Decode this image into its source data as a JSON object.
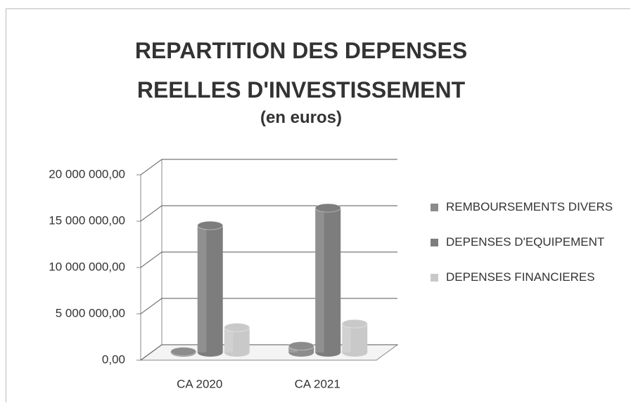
{
  "chart_data": {
    "type": "bar3d",
    "title": "REPARTITION DES DEPENSES REELLES D'INVESTISSEMENT",
    "subtitle": "(en euros)",
    "categories": [
      "CA 2020",
      "CA 2021"
    ],
    "series": [
      {
        "name": "REMBOURSEMENTS DIVERS",
        "color": "#8c8c8c",
        "values": [
          100000,
          700000
        ]
      },
      {
        "name": "DEPENSES D'EQUIPEMENT",
        "color": "#7d7d7d",
        "values": [
          13700000,
          15600000
        ]
      },
      {
        "name": "DEPENSES FINANCIERES",
        "color": "#c9c9c9",
        "values": [
          2700000,
          3100000
        ]
      }
    ],
    "ylim": [
      0,
      20000000
    ],
    "yticks": [
      {
        "value": 0,
        "label": "0,00"
      },
      {
        "value": 5000000,
        "label": "5 000 000,00"
      },
      {
        "value": 10000000,
        "label": "10 000 000,00"
      },
      {
        "value": 15000000,
        "label": "15 000 000,00"
      },
      {
        "value": 20000000,
        "label": "20 000 000,00"
      }
    ],
    "grid": true,
    "legend": "right"
  }
}
